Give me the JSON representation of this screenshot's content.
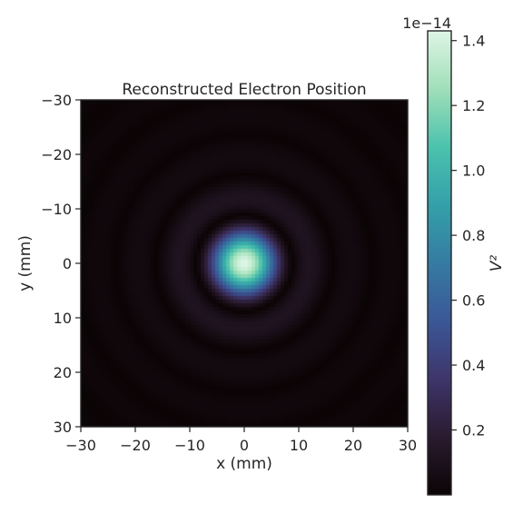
{
  "chart_data": {
    "type": "heatmap",
    "title": "Reconstructed Electron Position",
    "xlabel": "x (mm)",
    "ylabel": "y (mm)",
    "xlim": [
      -30,
      30
    ],
    "ylim_top_to_bottom": [
      -30,
      30
    ],
    "x_ticks": [
      "−30",
      "−20",
      "−10",
      "0",
      "10",
      "20",
      "30"
    ],
    "y_ticks": [
      "−30",
      "−20",
      "−10",
      "0",
      "10",
      "20",
      "30"
    ],
    "grid": false,
    "pattern": "Airy-like ring pattern centered at (0, 0) with peak intensity at center and concentric rings of decreasing brightness, approximately 9 mm ring spacing",
    "peak_value": 1.43e-14,
    "colorbar": {
      "label": "V²",
      "scale_text": "1e−14",
      "range": [
        0,
        1.43
      ],
      "ticks": [
        "0.2",
        "0.4",
        "0.6",
        "0.8",
        "1.0",
        "1.2",
        "1.4"
      ],
      "tick_values": [
        0.2,
        0.4,
        0.6,
        0.8,
        1.0,
        1.2,
        1.4
      ],
      "colormap": "mako",
      "color_stops": [
        "#0b0405",
        "#2a1b2f",
        "#3e356b",
        "#3b5797",
        "#357ba2",
        "#34a0a9",
        "#4bc2ad",
        "#a0dfb9",
        "#def5e5"
      ]
    }
  }
}
